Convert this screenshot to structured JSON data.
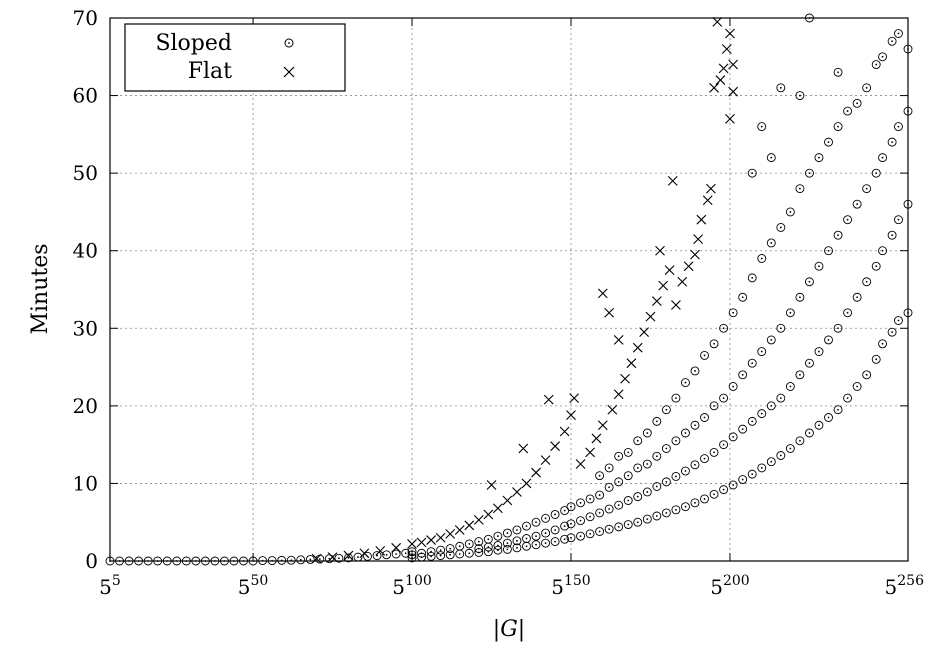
{
  "chart_data": {
    "type": "scatter",
    "title": "",
    "xlabel": "|G|",
    "ylabel": "Minutes",
    "x_scale": "log5",
    "xlim": [
      5,
      256
    ],
    "ylim": [
      0,
      70
    ],
    "grid": true,
    "legend_position": "top-left",
    "x_ticks": [
      {
        "base": "5",
        "exp": "5",
        "value": 5
      },
      {
        "base": "5",
        "exp": "50",
        "value": 50
      },
      {
        "base": "5",
        "exp": "100",
        "value": 100
      },
      {
        "base": "5",
        "exp": "150",
        "value": 150
      },
      {
        "base": "5",
        "exp": "200",
        "value": 200
      },
      {
        "base": "5",
        "exp": "256",
        "value": 256
      }
    ],
    "y_ticks": [
      "0",
      "10",
      "20",
      "30",
      "40",
      "50",
      "60",
      "70"
    ],
    "y_tick_values": [
      0,
      10,
      20,
      30,
      40,
      50,
      60,
      70
    ],
    "series": [
      {
        "name": "Sloped",
        "marker": "circle-dot",
        "points": [
          [
            5,
            0.0
          ],
          [
            8,
            0.0
          ],
          [
            11,
            0.0
          ],
          [
            14,
            0.0
          ],
          [
            17,
            0.0
          ],
          [
            20,
            0.0
          ],
          [
            23,
            0.0
          ],
          [
            26,
            0.0
          ],
          [
            29,
            0.0
          ],
          [
            32,
            0.0
          ],
          [
            35,
            0.0
          ],
          [
            38,
            0.0
          ],
          [
            41,
            0.0
          ],
          [
            44,
            0.0
          ],
          [
            47,
            0.0
          ],
          [
            50,
            0.0
          ],
          [
            53,
            0.05
          ],
          [
            56,
            0.05
          ],
          [
            59,
            0.08
          ],
          [
            62,
            0.1
          ],
          [
            65,
            0.15
          ],
          [
            68,
            0.2
          ],
          [
            71,
            0.25
          ],
          [
            74,
            0.3
          ],
          [
            77,
            0.35
          ],
          [
            80,
            0.4
          ],
          [
            83,
            0.5
          ],
          [
            86,
            0.6
          ],
          [
            89,
            0.7
          ],
          [
            92,
            0.8
          ],
          [
            95,
            0.9
          ],
          [
            98,
            1.0
          ],
          [
            100,
            0.4
          ],
          [
            100,
            0.8
          ],
          [
            100,
            1.2
          ],
          [
            103,
            0.5
          ],
          [
            103,
            1.0
          ],
          [
            106,
            0.6
          ],
          [
            106,
            1.2
          ],
          [
            109,
            0.7
          ],
          [
            109,
            1.4
          ],
          [
            112,
            0.8
          ],
          [
            112,
            1.6
          ],
          [
            115,
            0.9
          ],
          [
            115,
            1.9
          ],
          [
            118,
            1.0
          ],
          [
            118,
            2.2
          ],
          [
            121,
            1.1
          ],
          [
            121,
            1.6
          ],
          [
            121,
            2.5
          ],
          [
            124,
            1.2
          ],
          [
            124,
            1.8
          ],
          [
            124,
            2.8
          ],
          [
            127,
            1.4
          ],
          [
            127,
            2.0
          ],
          [
            127,
            3.2
          ],
          [
            130,
            1.5
          ],
          [
            130,
            2.3
          ],
          [
            130,
            3.6
          ],
          [
            133,
            1.7
          ],
          [
            133,
            2.6
          ],
          [
            133,
            4.0
          ],
          [
            136,
            1.9
          ],
          [
            136,
            2.9
          ],
          [
            136,
            4.5
          ],
          [
            139,
            2.1
          ],
          [
            139,
            3.2
          ],
          [
            139,
            5.0
          ],
          [
            142,
            2.3
          ],
          [
            142,
            3.6
          ],
          [
            142,
            5.5
          ],
          [
            145,
            2.5
          ],
          [
            145,
            4.0
          ],
          [
            145,
            6.0
          ],
          [
            148,
            2.8
          ],
          [
            148,
            4.5
          ],
          [
            148,
            6.5
          ],
          [
            150,
            3.0
          ],
          [
            150,
            4.8
          ],
          [
            150,
            7.0
          ],
          [
            153,
            3.2
          ],
          [
            153,
            5.2
          ],
          [
            153,
            7.5
          ],
          [
            156,
            3.5
          ],
          [
            156,
            5.7
          ],
          [
            156,
            8.0
          ],
          [
            159,
            3.8
          ],
          [
            159,
            6.2
          ],
          [
            159,
            8.5
          ],
          [
            159,
            11.0
          ],
          [
            162,
            4.1
          ],
          [
            162,
            6.7
          ],
          [
            162,
            9.5
          ],
          [
            162,
            12.0
          ],
          [
            165,
            4.4
          ],
          [
            165,
            7.2
          ],
          [
            165,
            10.2
          ],
          [
            165,
            13.5
          ],
          [
            168,
            4.7
          ],
          [
            168,
            7.8
          ],
          [
            168,
            11.0
          ],
          [
            168,
            14.0
          ],
          [
            171,
            5.0
          ],
          [
            171,
            8.3
          ],
          [
            171,
            12.0
          ],
          [
            171,
            15.5
          ],
          [
            174,
            5.4
          ],
          [
            174,
            8.9
          ],
          [
            174,
            12.5
          ],
          [
            174,
            16.5
          ],
          [
            177,
            5.8
          ],
          [
            177,
            9.6
          ],
          [
            177,
            13.5
          ],
          [
            177,
            18.0
          ],
          [
            180,
            6.2
          ],
          [
            180,
            10.2
          ],
          [
            180,
            14.5
          ],
          [
            180,
            19.5
          ],
          [
            183,
            6.6
          ],
          [
            183,
            10.9
          ],
          [
            183,
            15.5
          ],
          [
            183,
            21.0
          ],
          [
            186,
            7.0
          ],
          [
            186,
            11.6
          ],
          [
            186,
            16.5
          ],
          [
            186,
            23.0
          ],
          [
            189,
            7.5
          ],
          [
            189,
            12.4
          ],
          [
            189,
            17.5
          ],
          [
            189,
            24.5
          ],
          [
            192,
            8.0
          ],
          [
            192,
            13.2
          ],
          [
            192,
            18.5
          ],
          [
            192,
            26.5
          ],
          [
            195,
            8.6
          ],
          [
            195,
            14.0
          ],
          [
            195,
            20.0
          ],
          [
            195,
            28.0
          ],
          [
            198,
            9.2
          ],
          [
            198,
            15.0
          ],
          [
            198,
            21.0
          ],
          [
            198,
            30.0
          ],
          [
            201,
            9.8
          ],
          [
            201,
            16.0
          ],
          [
            201,
            22.5
          ],
          [
            201,
            32.0
          ],
          [
            204,
            10.5
          ],
          [
            204,
            17.0
          ],
          [
            204,
            24.0
          ],
          [
            204,
            34.0
          ],
          [
            207,
            11.2
          ],
          [
            207,
            18.0
          ],
          [
            207,
            25.5
          ],
          [
            207,
            36.5
          ],
          [
            207,
            50.0
          ],
          [
            210,
            12.0
          ],
          [
            210,
            19.0
          ],
          [
            210,
            27.0
          ],
          [
            210,
            39.0
          ],
          [
            210,
            56.0
          ],
          [
            213,
            12.8
          ],
          [
            213,
            20.0
          ],
          [
            213,
            28.5
          ],
          [
            213,
            41.0
          ],
          [
            213,
            52.0
          ],
          [
            216,
            13.6
          ],
          [
            216,
            21.0
          ],
          [
            216,
            30.0
          ],
          [
            216,
            43.0
          ],
          [
            216,
            61.0
          ],
          [
            219,
            14.5
          ],
          [
            219,
            22.5
          ],
          [
            219,
            32.0
          ],
          [
            219,
            45.0
          ],
          [
            222,
            15.5
          ],
          [
            222,
            24.0
          ],
          [
            222,
            34.0
          ],
          [
            222,
            48.0
          ],
          [
            222,
            60.0
          ],
          [
            225,
            16.5
          ],
          [
            225,
            25.5
          ],
          [
            225,
            36.0
          ],
          [
            225,
            50.0
          ],
          [
            225,
            70.0
          ],
          [
            228,
            17.5
          ],
          [
            228,
            27.0
          ],
          [
            228,
            38.0
          ],
          [
            228,
            52.0
          ],
          [
            231,
            18.5
          ],
          [
            231,
            28.5
          ],
          [
            231,
            40.0
          ],
          [
            231,
            54.0
          ],
          [
            234,
            19.5
          ],
          [
            234,
            30.0
          ],
          [
            234,
            42.0
          ],
          [
            234,
            56.0
          ],
          [
            234,
            63.0
          ],
          [
            237,
            21.0
          ],
          [
            237,
            32.0
          ],
          [
            237,
            44.0
          ],
          [
            237,
            58.0
          ],
          [
            240,
            22.5
          ],
          [
            240,
            34.0
          ],
          [
            240,
            46.0
          ],
          [
            240,
            59.0
          ],
          [
            243,
            24.0
          ],
          [
            243,
            36.0
          ],
          [
            243,
            48.0
          ],
          [
            243,
            61.0
          ],
          [
            246,
            26.0
          ],
          [
            246,
            38.0
          ],
          [
            246,
            50.0
          ],
          [
            246,
            64.0
          ],
          [
            248,
            28.0
          ],
          [
            248,
            40.0
          ],
          [
            248,
            52.0
          ],
          [
            248,
            65.0
          ],
          [
            251,
            29.5
          ],
          [
            251,
            42.0
          ],
          [
            251,
            54.0
          ],
          [
            251,
            67.0
          ],
          [
            253,
            31.0
          ],
          [
            253,
            44.0
          ],
          [
            253,
            56.0
          ],
          [
            253,
            68.0
          ],
          [
            256,
            32.0
          ],
          [
            256,
            46.0
          ],
          [
            256,
            58.0
          ],
          [
            256,
            66.0
          ]
        ]
      },
      {
        "name": "Flat",
        "marker": "cross",
        "points": [
          [
            70,
            0.3
          ],
          [
            75,
            0.5
          ],
          [
            80,
            0.7
          ],
          [
            85,
            1.0
          ],
          [
            90,
            1.3
          ],
          [
            95,
            1.7
          ],
          [
            100,
            2.2
          ],
          [
            103,
            2.4
          ],
          [
            106,
            2.7
          ],
          [
            109,
            3.0
          ],
          [
            112,
            3.5
          ],
          [
            115,
            4.0
          ],
          [
            118,
            4.6
          ],
          [
            121,
            5.3
          ],
          [
            124,
            6.0
          ],
          [
            125,
            9.8
          ],
          [
            127,
            6.8
          ],
          [
            130,
            7.8
          ],
          [
            133,
            8.9
          ],
          [
            135,
            14.5
          ],
          [
            136,
            10.0
          ],
          [
            139,
            11.4
          ],
          [
            142,
            13.0
          ],
          [
            143,
            20.8
          ],
          [
            145,
            14.8
          ],
          [
            148,
            16.7
          ],
          [
            150,
            18.8
          ],
          [
            151,
            21.0
          ],
          [
            153,
            12.5
          ],
          [
            156,
            14.0
          ],
          [
            158,
            15.8
          ],
          [
            160,
            17.5
          ],
          [
            160,
            34.5
          ],
          [
            162,
            32.0
          ],
          [
            163,
            19.5
          ],
          [
            165,
            21.5
          ],
          [
            165,
            28.5
          ],
          [
            167,
            23.5
          ],
          [
            169,
            25.5
          ],
          [
            171,
            27.5
          ],
          [
            173,
            29.5
          ],
          [
            175,
            31.5
          ],
          [
            177,
            33.5
          ],
          [
            178,
            40.0
          ],
          [
            179,
            35.5
          ],
          [
            181,
            37.5
          ],
          [
            182,
            49.0
          ],
          [
            183,
            33.0
          ],
          [
            185,
            36.0
          ],
          [
            187,
            38.0
          ],
          [
            189,
            39.5
          ],
          [
            190,
            41.5
          ],
          [
            191,
            44.0
          ],
          [
            193,
            46.5
          ],
          [
            194,
            48.0
          ],
          [
            195,
            61.0
          ],
          [
            196,
            69.5
          ],
          [
            197,
            62.0
          ],
          [
            198,
            63.5
          ],
          [
            199,
            66.0
          ],
          [
            200,
            68.0
          ],
          [
            200,
            57.0
          ],
          [
            201,
            60.5
          ],
          [
            201,
            64.0
          ]
        ]
      }
    ]
  }
}
